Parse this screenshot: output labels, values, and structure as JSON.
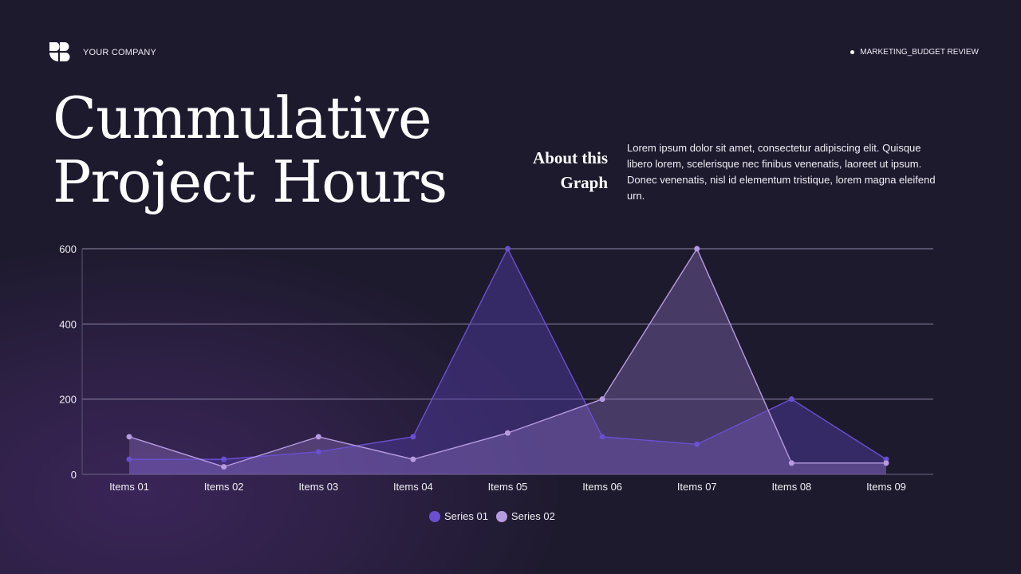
{
  "header": {
    "company": "YOUR COMPANY",
    "right_label": "MARKETING_BUDGET REVIEW"
  },
  "title": {
    "line1": "Cummulative",
    "line2": "Project Hours"
  },
  "about": {
    "heading_line1": "About this",
    "heading_line2": "Graph",
    "body": "Lorem ipsum dolor sit amet, consectetur adipiscing elit. Quisque libero lorem, scelerisque nec finibus venenatis, laoreet ut ipsum. Donec venenatis, nisl id elementum tristique, lorem magna eleifend urn."
  },
  "colors": {
    "background": "#1e1a2e",
    "series1": "#6a4fd0",
    "series2": "#b79be0",
    "grid": "#8f88a6"
  },
  "chart_data": {
    "type": "area",
    "title": "Cummulative Project Hours",
    "xlabel": "",
    "ylabel": "",
    "categories": [
      "Items 01",
      "Items 02",
      "Items 03",
      "Items 04",
      "Items 05",
      "Items 06",
      "Items 07",
      "Items 08",
      "Items 09"
    ],
    "series": [
      {
        "name": "Series 01",
        "color": "#6a4fd0",
        "values": [
          40,
          40,
          60,
          100,
          600,
          100,
          80,
          200,
          40
        ]
      },
      {
        "name": "Series 02",
        "color": "#b79be0",
        "values": [
          100,
          20,
          100,
          40,
          110,
          200,
          600,
          30,
          30
        ]
      }
    ],
    "yticks": [
      0,
      200,
      400,
      600
    ],
    "ylim": [
      0,
      600
    ],
    "grid": true,
    "legend_position": "bottom"
  }
}
